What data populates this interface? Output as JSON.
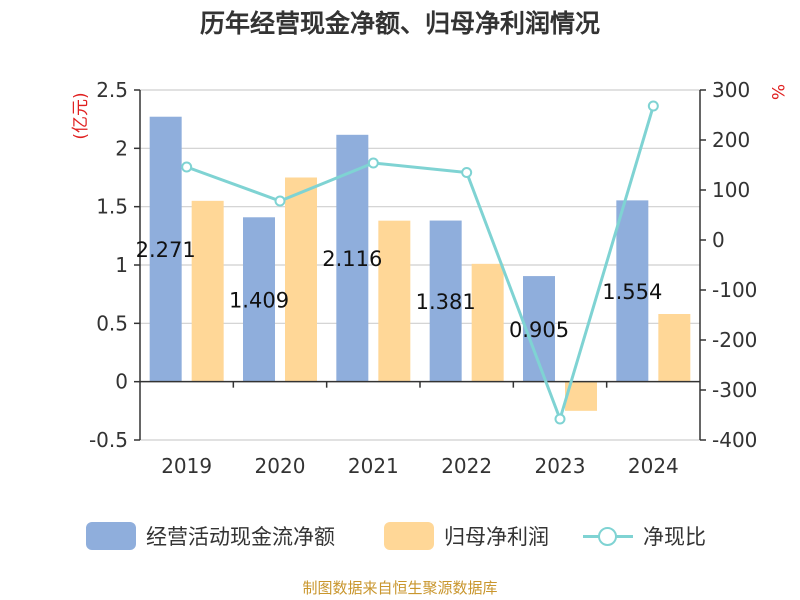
{
  "title": "历年经营现金净额、归母净利润情况",
  "footer": "制图数据来自恒生聚源数据库",
  "colors": {
    "ocf": "#8FAEDC",
    "profit": "#FFD797",
    "ratio": "#7FD3D3"
  },
  "chart_data": {
    "type": "bar",
    "categories": [
      "2019",
      "2020",
      "2021",
      "2022",
      "2023",
      "2024"
    ],
    "left_axis": {
      "unit": "(亿元)",
      "ylim": [
        -0.5,
        2.5
      ],
      "ticks": [
        "-0.5",
        "0",
        "0.5",
        "1",
        "1.5",
        "2",
        "2.5"
      ]
    },
    "right_axis": {
      "unit": "%",
      "ylim": [
        -400,
        300
      ],
      "ticks": [
        "-400",
        "-300",
        "-200",
        "-100",
        "0",
        "100",
        "200",
        "300"
      ]
    },
    "series": [
      {
        "name": "经营活动现金流净额",
        "type": "bar",
        "axis": "left",
        "values": [
          2.271,
          1.409,
          2.116,
          1.381,
          0.905,
          1.554
        ],
        "labels": [
          "2.271",
          "1.409",
          "2.116",
          "1.381",
          "0.905",
          "1.554"
        ]
      },
      {
        "name": "归母净利润",
        "type": "bar",
        "axis": "left",
        "values": [
          1.55,
          1.75,
          1.38,
          1.01,
          -0.25,
          0.58
        ]
      },
      {
        "name": "净现比",
        "type": "line",
        "axis": "right",
        "values": [
          146,
          78,
          154,
          135,
          -358,
          268
        ]
      }
    ],
    "grid": true,
    "legend": "bottom"
  }
}
